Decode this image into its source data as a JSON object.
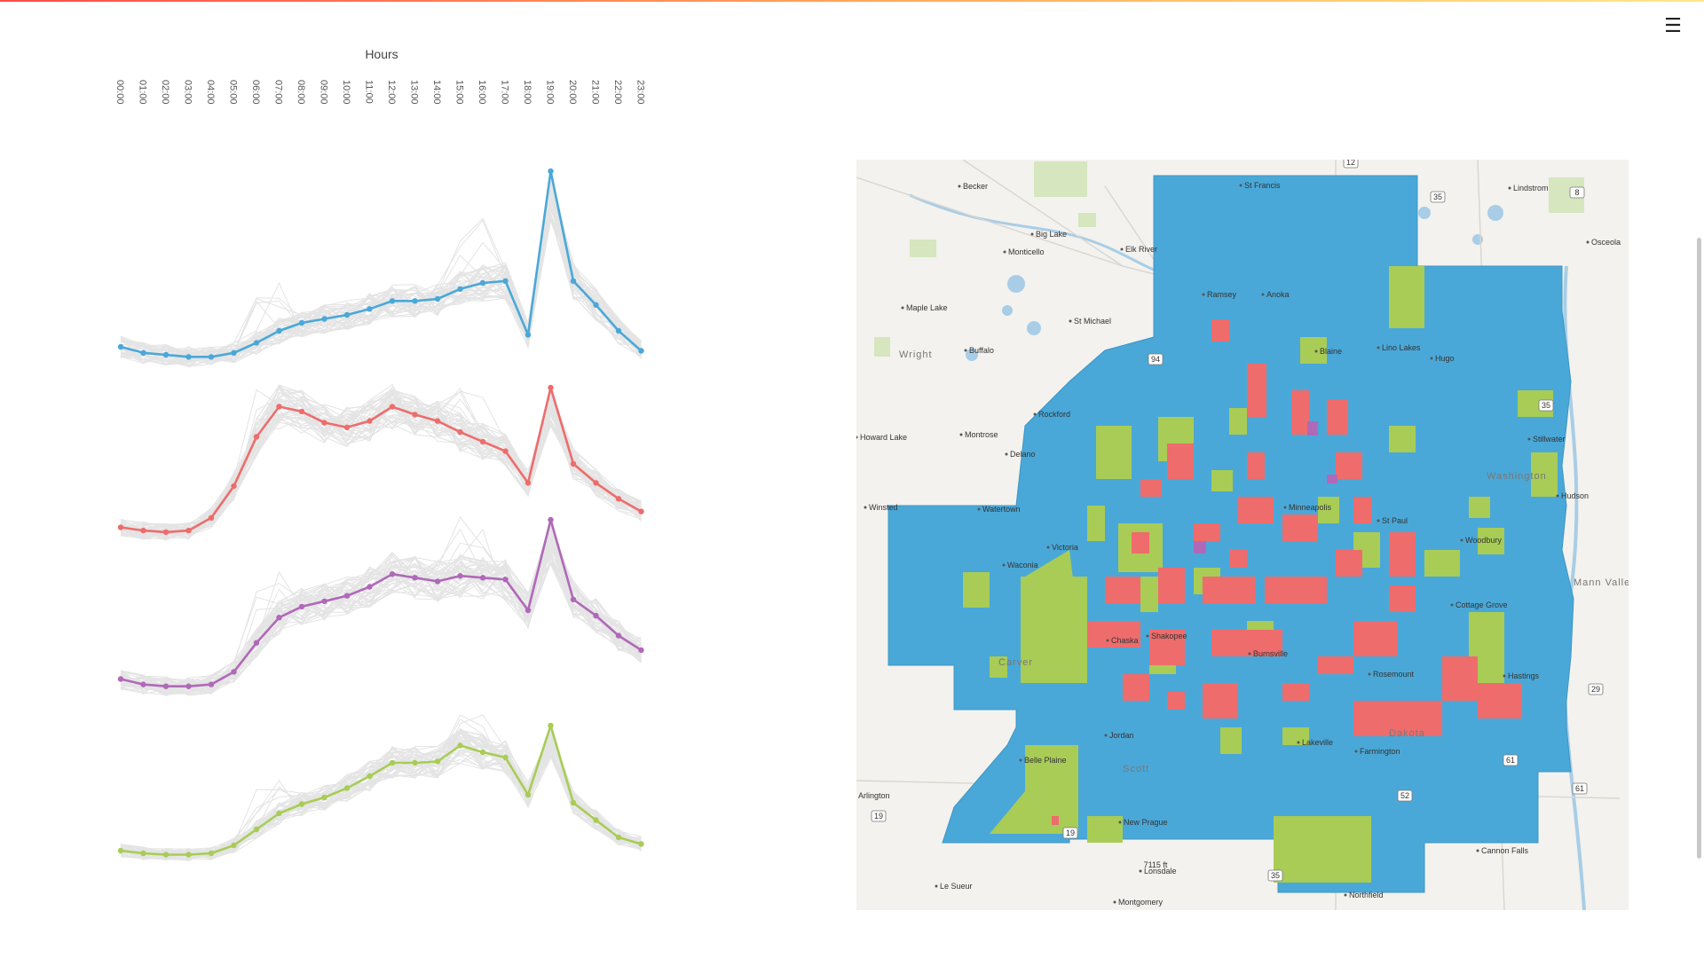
{
  "menu_icon": "hamburger-menu-icon",
  "chart_data": {
    "type": "line",
    "xlabel": "Hours",
    "categories": [
      "00:00",
      "01:00",
      "02:00",
      "03:00",
      "04:00",
      "05:00",
      "06:00",
      "07:00",
      "08:00",
      "09:00",
      "10:00",
      "11:00",
      "12:00",
      "13:00",
      "14:00",
      "15:00",
      "16:00",
      "17:00",
      "18:00",
      "19:00",
      "20:00",
      "21:00",
      "22:00",
      "23:00"
    ],
    "grid": false,
    "background_lines_color": "#e4e4e4",
    "series": [
      {
        "color": "#4aa8d8",
        "values": [
          0.12,
          0.09,
          0.08,
          0.07,
          0.07,
          0.09,
          0.14,
          0.2,
          0.24,
          0.26,
          0.28,
          0.31,
          0.35,
          0.35,
          0.36,
          0.41,
          0.44,
          0.45,
          0.18,
          1.0,
          0.45,
          0.33,
          0.2,
          0.1
        ]
      },
      {
        "color": "#ee6c6c",
        "values": [
          0.12,
          0.1,
          0.09,
          0.1,
          0.18,
          0.38,
          0.69,
          0.88,
          0.85,
          0.78,
          0.75,
          0.79,
          0.88,
          0.83,
          0.79,
          0.72,
          0.66,
          0.6,
          0.4,
          1.0,
          0.52,
          0.4,
          0.3,
          0.22
        ]
      },
      {
        "color": "#b069b8",
        "values": [
          0.12,
          0.09,
          0.08,
          0.08,
          0.09,
          0.16,
          0.32,
          0.46,
          0.52,
          0.55,
          0.58,
          0.63,
          0.7,
          0.68,
          0.66,
          0.69,
          0.68,
          0.67,
          0.5,
          1.0,
          0.56,
          0.47,
          0.36,
          0.28
        ]
      },
      {
        "color": "#a8cc55",
        "values": [
          0.06,
          0.04,
          0.03,
          0.03,
          0.04,
          0.1,
          0.22,
          0.34,
          0.41,
          0.46,
          0.53,
          0.62,
          0.72,
          0.72,
          0.73,
          0.85,
          0.8,
          0.76,
          0.48,
          1.0,
          0.42,
          0.29,
          0.16,
          0.11
        ]
      }
    ]
  },
  "map": {
    "cluster_colors": {
      "blue": "#4aa8d8",
      "red": "#ee6c6c",
      "green": "#a8cc55",
      "purple": "#b069b8"
    },
    "places": [
      "Becker",
      "Big Lake",
      "Monticello",
      "Elk River",
      "St Francis",
      "Lindstrom",
      "Osceola",
      "Maple Lake",
      "Buffalo",
      "St Michael",
      "Ramsey",
      "Anoka",
      "Wright",
      "Rockford",
      "Howard Lake",
      "Montrose",
      "Delano",
      "Stillwater",
      "Hudson",
      "Winsted",
      "Watertown",
      "Woodbury",
      "Mann Valley",
      "Cottage Grove",
      "Chaska",
      "Shakopee",
      "Burnsville",
      "Rosemount",
      "Hastings",
      "Jordan",
      "Belle Plaine",
      "Lakeville",
      "Farmington",
      "New Prague",
      "Lonsdale",
      "Northfield",
      "Cannon Falls",
      "Le Sueur",
      "Montgomery",
      "Arlington",
      "St Paul",
      "Minneapolis",
      "Blaine",
      "Victoria",
      "Waconia",
      "Carver",
      "Scott",
      "Dakota",
      "Washington",
      "Hugo",
      "Lino Lakes"
    ],
    "route_labels": [
      "12",
      "35",
      "8",
      "94",
      "35",
      "29",
      "19",
      "61",
      "52",
      "19",
      "61",
      "35",
      "7115 ft"
    ]
  }
}
